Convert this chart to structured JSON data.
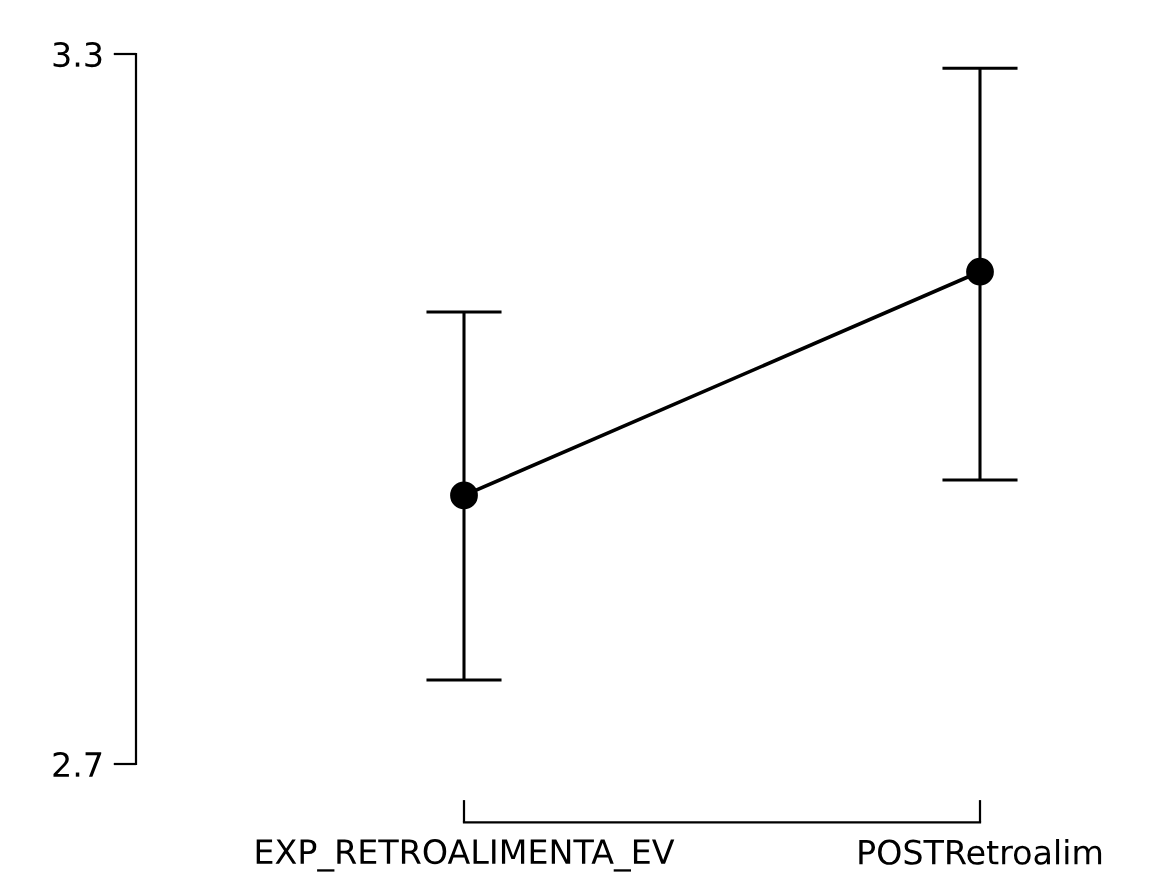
{
  "chart_data": {
    "type": "line",
    "categories": [
      "EXP_RETROALIMENTA_EV",
      "POSTRetroalim"
    ],
    "values": [
      2.927,
      3.116
    ],
    "color": "#000000",
    "errors": [
      [
        2.771,
        3.082
      ],
      [
        2.94,
        3.288
      ]
    ],
    "ylim": [
      2.7,
      3.3
    ],
    "yticks": [
      2.7,
      3.3
    ],
    "marker": "circle",
    "line_style": "solid",
    "grid": false,
    "legend": false
  }
}
